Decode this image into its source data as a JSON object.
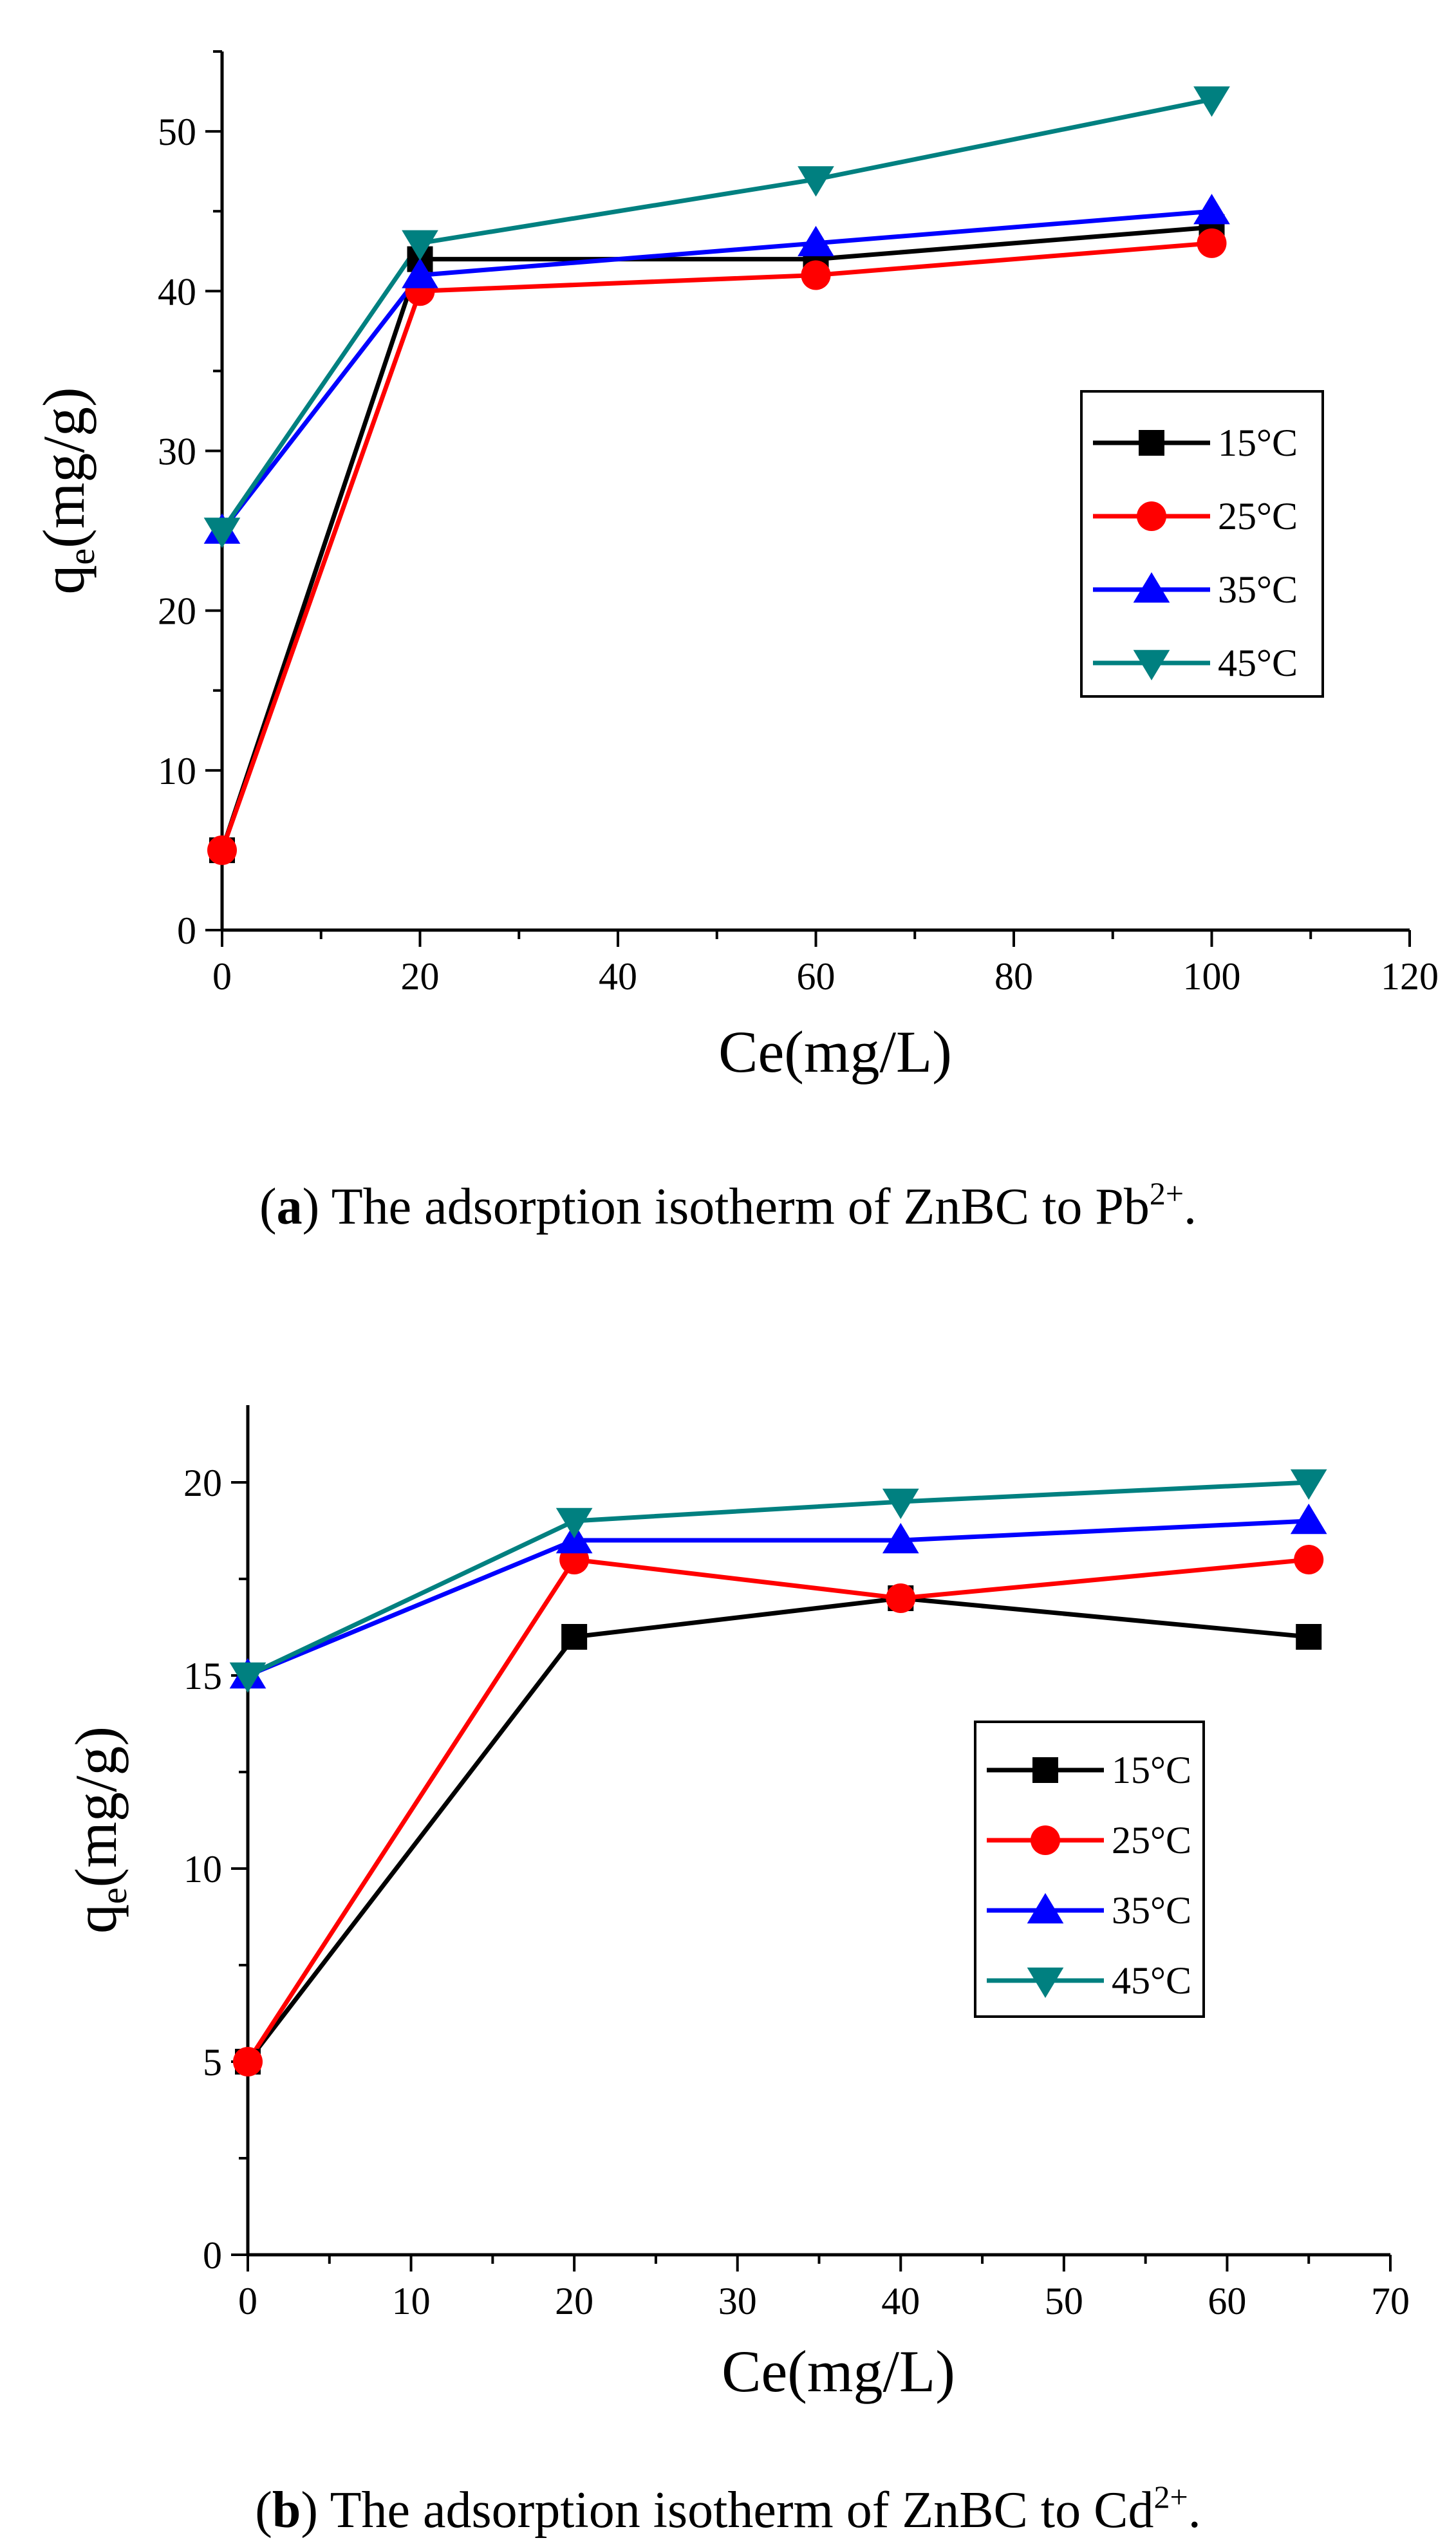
{
  "chart_data": [
    {
      "type": "line",
      "panel": "a",
      "caption_letter": "a",
      "caption_text": ") The adsorption isotherm of ZnBC to Pb",
      "caption_sup": "2+",
      "caption_tail": ".",
      "xlabel": "Ce(mg/L)",
      "ylabel_main": "q",
      "ylabel_sub": "e",
      "ylabel_rest": "(mg/g)",
      "xlim": [
        0,
        120
      ],
      "ylim": [
        0,
        55
      ],
      "xticks": [
        0,
        20,
        40,
        60,
        80,
        100,
        120
      ],
      "yticks": [
        0,
        10,
        20,
        30,
        40,
        50
      ],
      "x_minor_step": 10,
      "y_minor_step": 5,
      "legend_position": "right-middle",
      "series": [
        {
          "name": "15",
          "unit": "°C",
          "marker": "square",
          "color": "#000000",
          "x": [
            0,
            20,
            60,
            100
          ],
          "y": [
            5,
            42,
            42,
            44
          ]
        },
        {
          "name": "25",
          "unit": "°C",
          "marker": "circle",
          "color": "#ff0000",
          "x": [
            0,
            20,
            60,
            100
          ],
          "y": [
            5,
            40,
            41,
            43
          ]
        },
        {
          "name": "35",
          "unit": "°C",
          "marker": "triangle-up",
          "color": "#0000ff",
          "x": [
            0,
            20,
            60,
            100
          ],
          "y": [
            25,
            41,
            43,
            45
          ]
        },
        {
          "name": "45",
          "unit": "°C",
          "marker": "triangle-down",
          "color": "#008080",
          "x": [
            0,
            20,
            60,
            100
          ],
          "y": [
            25,
            43,
            47,
            52
          ]
        }
      ]
    },
    {
      "type": "line",
      "panel": "b",
      "caption_letter": "b",
      "caption_text": ") The adsorption isotherm of ZnBC to Cd",
      "caption_sup": "2+",
      "caption_tail": ".",
      "xlabel": "Ce(mg/L)",
      "ylabel_main": "q",
      "ylabel_sub": "e",
      "ylabel_rest": "(mg/g)",
      "xlim": [
        0,
        70
      ],
      "ylim": [
        0,
        22
      ],
      "xticks": [
        0,
        10,
        20,
        30,
        40,
        50,
        60,
        70
      ],
      "yticks": [
        0,
        5,
        10,
        15,
        20
      ],
      "x_minor_step": 5,
      "y_minor_step": 2.5,
      "legend_position": "right-middle",
      "series": [
        {
          "name": "15",
          "unit": "°C",
          "marker": "square",
          "color": "#000000",
          "x": [
            0,
            20,
            40,
            65
          ],
          "y": [
            5,
            16,
            17,
            16
          ]
        },
        {
          "name": "25",
          "unit": "°C",
          "marker": "circle",
          "color": "#ff0000",
          "x": [
            0,
            20,
            40,
            65
          ],
          "y": [
            5,
            18,
            17,
            18
          ]
        },
        {
          "name": "35",
          "unit": "°C",
          "marker": "triangle-up",
          "color": "#0000ff",
          "x": [
            0,
            20,
            40,
            65
          ],
          "y": [
            15,
            18.5,
            18.5,
            19
          ]
        },
        {
          "name": "45",
          "unit": "°C",
          "marker": "triangle-down",
          "color": "#008080",
          "x": [
            0,
            20,
            40,
            65
          ],
          "y": [
            15,
            19,
            19.5,
            20
          ]
        }
      ]
    }
  ]
}
